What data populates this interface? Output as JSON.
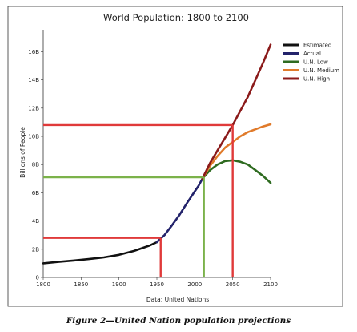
{
  "figure": {
    "caption": "Figure 2—United Nation population projections"
  },
  "chart_data": {
    "type": "line",
    "title": "World Population: 1800 to 2100",
    "xlabel": "Data: United Nations",
    "ylabel": "Billions of People",
    "xlim": [
      1800,
      2100
    ],
    "ylim": [
      0,
      17.5
    ],
    "x_ticks": [
      1800,
      1850,
      1900,
      1950,
      2000,
      2050,
      2100
    ],
    "y_ticks": [
      {
        "value": 0,
        "label": "0"
      },
      {
        "value": 2,
        "label": "2B"
      },
      {
        "value": 4,
        "label": "4B"
      },
      {
        "value": 6,
        "label": "6B"
      },
      {
        "value": 8,
        "label": "8B"
      },
      {
        "value": 10,
        "label": "10B"
      },
      {
        "value": 12,
        "label": "12B"
      },
      {
        "value": 14,
        "label": "14B"
      },
      {
        "value": 16,
        "label": "16B"
      }
    ],
    "grid": false,
    "legend_position": "top-right",
    "series": [
      {
        "name": "Estimated",
        "color": "#111111",
        "x": [
          1800,
          1820,
          1840,
          1860,
          1880,
          1900,
          1920,
          1940,
          1950
        ],
        "y": [
          1.0,
          1.1,
          1.2,
          1.3,
          1.42,
          1.6,
          1.88,
          2.25,
          2.5
        ]
      },
      {
        "name": "Actual",
        "color": "#23236b",
        "x": [
          1950,
          1955,
          1960,
          1970,
          1980,
          1990,
          2000,
          2005,
          2010
        ],
        "y": [
          2.5,
          2.75,
          3.0,
          3.7,
          4.45,
          5.3,
          6.1,
          6.5,
          7.0
        ]
      },
      {
        "name": "U.N. Low",
        "color": "#2e6b20",
        "x": [
          2010,
          2020,
          2030,
          2040,
          2050,
          2060,
          2070,
          2080,
          2090,
          2100
        ],
        "y": [
          7.0,
          7.6,
          8.0,
          8.25,
          8.3,
          8.2,
          8.0,
          7.6,
          7.2,
          6.7
        ]
      },
      {
        "name": "U.N. Medium",
        "color": "#e07a2a",
        "x": [
          2010,
          2020,
          2030,
          2040,
          2050,
          2060,
          2070,
          2080,
          2090,
          2100
        ],
        "y": [
          7.0,
          7.9,
          8.6,
          9.2,
          9.6,
          10.0,
          10.3,
          10.5,
          10.7,
          10.85
        ]
      },
      {
        "name": "U.N. High",
        "color": "#8b1a1a",
        "x": [
          2010,
          2020,
          2030,
          2040,
          2050,
          2060,
          2070,
          2080,
          2090,
          2100
        ],
        "y": [
          7.0,
          8.1,
          9.0,
          9.9,
          10.8,
          11.8,
          12.8,
          14.0,
          15.2,
          16.5
        ]
      }
    ],
    "reference_lines": [
      {
        "color": "#e03a3a",
        "x": 1955,
        "y": 2.8
      },
      {
        "color": "#7bb24a",
        "x": 2012,
        "y": 7.1
      },
      {
        "color": "#e03a3a",
        "x": 2050,
        "y": 10.8
      }
    ]
  }
}
